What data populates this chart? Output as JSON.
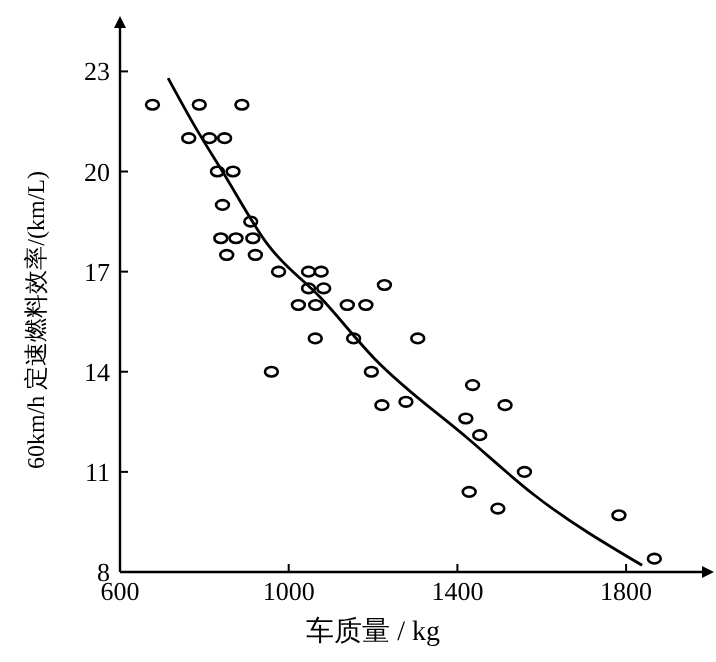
{
  "chart_data": {
    "type": "scatter",
    "xlabel": "车质量 / kg",
    "ylabel": "60km/h 定速燃料效率/(km/L)",
    "xlim": [
      600,
      1980
    ],
    "ylim": [
      8,
      24.3
    ],
    "xticks": [
      600,
      1000,
      1400,
      1800
    ],
    "yticks": [
      8,
      11,
      14,
      17,
      20,
      23
    ],
    "grid": false,
    "marker": "circle",
    "series": [
      {
        "color": "#000000",
        "x": [
          677,
          763,
          788,
          812,
          848,
          831,
          868,
          843,
          839,
          875,
          853,
          889,
          910,
          915,
          921,
          976,
          1023,
          1047,
          1077,
          1047,
          1083,
          1064,
          1063,
          959,
          1139,
          1183,
          1227,
          1154,
          1196,
          1221,
          1278,
          1306,
          1420,
          1436,
          1453,
          1513,
          1559,
          1428,
          1496,
          1783,
          1867
        ],
        "values": [
          22,
          21,
          22,
          21,
          21,
          20,
          20,
          19,
          18,
          18,
          17.5,
          22,
          18.5,
          18,
          17.5,
          17,
          16,
          17,
          17,
          16.5,
          16.5,
          16,
          15,
          14,
          16,
          16,
          16.6,
          15,
          14,
          13,
          13.1,
          15,
          12.6,
          13.6,
          12.1,
          13,
          11,
          10.4,
          9.9,
          9.7,
          8.4
        ]
      },
      {
        "type": "line",
        "color": "#000000",
        "marker": "none",
        "line_style": "solid",
        "x": [
          714,
          780,
          843,
          951,
          1077,
          1203,
          1425,
          1583,
          1838
        ],
        "values": [
          22.8,
          21.3,
          20,
          17.8,
          16.2,
          14.4,
          12,
          10.3,
          8.2
        ]
      }
    ]
  }
}
